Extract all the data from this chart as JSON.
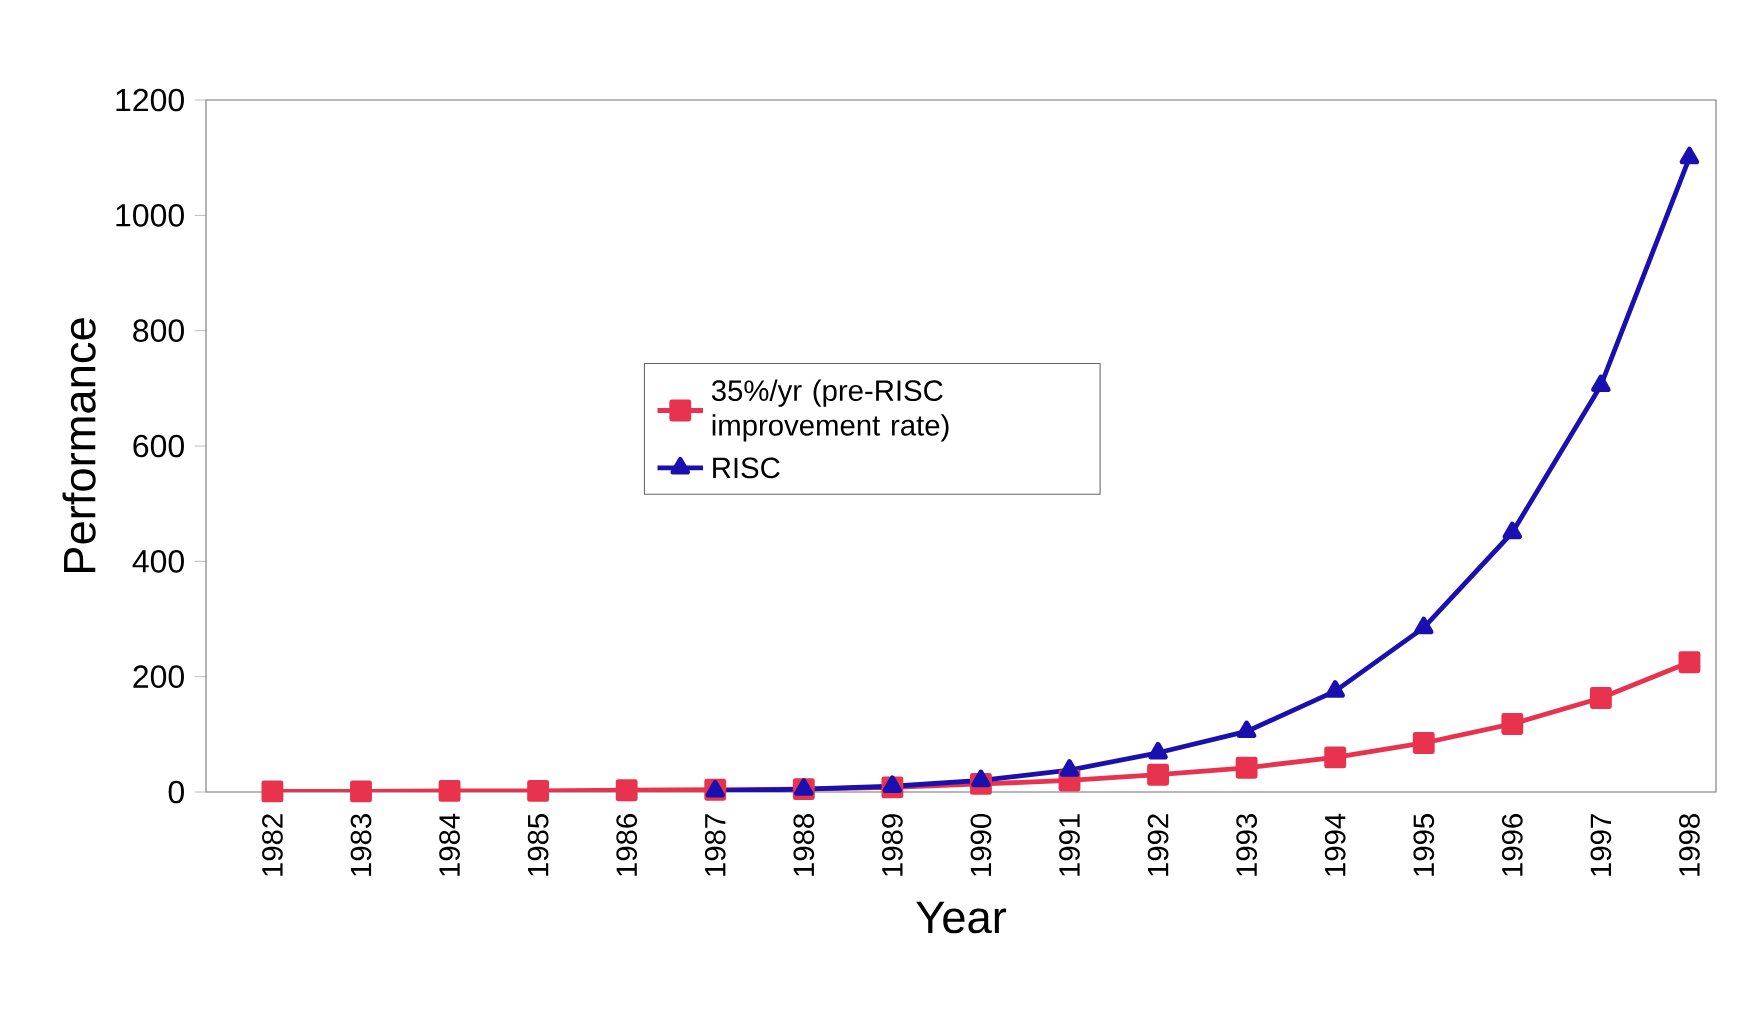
{
  "chart_data": {
    "type": "line",
    "xlabel": "Year",
    "ylabel": "Performance",
    "categories": [
      "1982",
      "1983",
      "1984",
      "1985",
      "1986",
      "1987",
      "1988",
      "1989",
      "1990",
      "1991",
      "1992",
      "1993",
      "1994",
      "1995",
      "1996",
      "1997",
      "1998"
    ],
    "series": [
      {
        "name": "35%/yr (pre-RISC improvement rate)",
        "color": "#e8334f",
        "marker": "square",
        "values": [
          1,
          1,
          2,
          2,
          3,
          4,
          5,
          8,
          14,
          20,
          30,
          42,
          60,
          85,
          118,
          163,
          225
        ]
      },
      {
        "name": "RISC",
        "color": "#1a10b0",
        "marker": "triangle",
        "values": [
          null,
          null,
          null,
          null,
          null,
          2,
          5,
          10,
          20,
          38,
          68,
          105,
          175,
          285,
          450,
          705,
          1100
        ]
      }
    ],
    "ylim": [
      0,
      1200
    ],
    "yticks": [
      0,
      200,
      400,
      600,
      800,
      1000,
      1200
    ],
    "grid": false,
    "legend": "center",
    "line_style": "solid"
  }
}
